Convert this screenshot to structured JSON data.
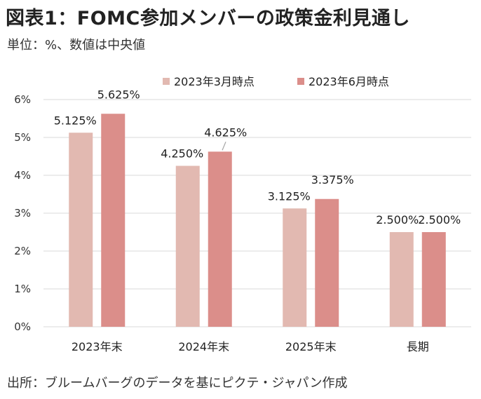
{
  "title": "図表1：FOMC参加メンバーの政策金利見通し",
  "subtitle": "単位：%、数値は中央値",
  "source": "出所：ブルームバーグのデータを基にピクテ・ジャパン作成",
  "colors": {
    "series1": "#E2B9B1",
    "series2": "#DB8E8A",
    "grid": "#D9D9D9"
  },
  "chart_data": {
    "type": "bar",
    "title": "図表1：FOMC参加メンバーの政策金利見通し",
    "subtitle": "単位：%、数値は中央値",
    "categories": [
      "2023年末",
      "2024年末",
      "2025年末",
      "長期"
    ],
    "series": [
      {
        "name": "2023年3月時点",
        "values": [
          5.125,
          4.25,
          3.125,
          2.5
        ],
        "labels": [
          "5.125%",
          "4.250%",
          "3.125%",
          "2.500%"
        ]
      },
      {
        "name": "2023年6月時点",
        "values": [
          5.625,
          4.625,
          3.375,
          2.5
        ],
        "labels": [
          "5.625%",
          "4.625%",
          "3.375%",
          "2.500%"
        ]
      }
    ],
    "ylim": [
      0,
      6
    ],
    "yticks": [
      "0%",
      "1%",
      "2%",
      "3%",
      "4%",
      "5%",
      "6%"
    ],
    "grid": true,
    "legend_position": "top"
  }
}
